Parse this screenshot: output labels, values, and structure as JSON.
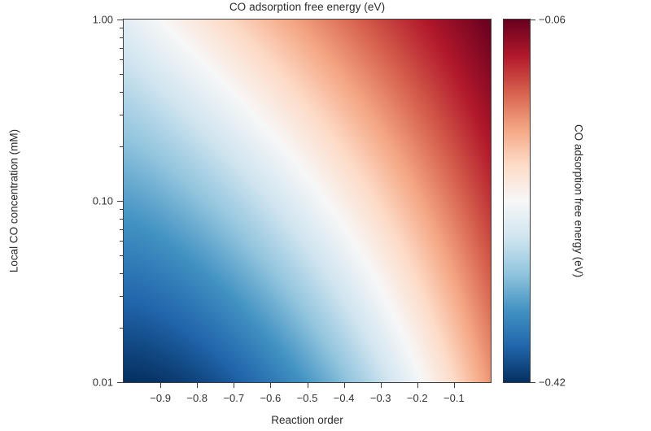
{
  "chart_data": {
    "type": "heatmap",
    "title": "CO adsorption free energy (eV)",
    "xlabel": "Reaction order",
    "ylabel": "Local CO concentration (mM)",
    "x_axis": {
      "min": -1.0,
      "max": 0.0,
      "ticks": [
        {
          "value": -0.9,
          "label": "−0.9"
        },
        {
          "value": -0.8,
          "label": "−0.8"
        },
        {
          "value": -0.7,
          "label": "−0.7"
        },
        {
          "value": -0.6,
          "label": "−0.6"
        },
        {
          "value": -0.5,
          "label": "−0.5"
        },
        {
          "value": -0.4,
          "label": "−0.4"
        },
        {
          "value": -0.3,
          "label": "−0.3"
        },
        {
          "value": -0.2,
          "label": "−0.2"
        },
        {
          "value": -0.1,
          "label": "−0.1"
        }
      ]
    },
    "y_axis": {
      "scale": "log",
      "min": 0.01,
      "max": 1.0,
      "ticks": [
        {
          "value": 1.0,
          "label": "1.00"
        },
        {
          "value": 0.1,
          "label": "0.10"
        },
        {
          "value": 0.01,
          "label": "0.01"
        }
      ],
      "minor_ticks": [
        0.9,
        0.8,
        0.7,
        0.6,
        0.5,
        0.4,
        0.3,
        0.2,
        0.09,
        0.08,
        0.07,
        0.06,
        0.05,
        0.04,
        0.03,
        0.02
      ]
    },
    "colorbar": {
      "label": "CO adsorption free energy (eV)",
      "min": -0.42,
      "max": -0.06,
      "ticks": [
        {
          "value": -0.06,
          "label": "−0.06",
          "at": "top"
        },
        {
          "value": -0.42,
          "label": "−0.42",
          "at": "bottom"
        }
      ]
    },
    "colormap": {
      "name": "RdBu_r",
      "stops": [
        {
          "pos": 0.0,
          "color": "#053061"
        },
        {
          "pos": 0.1,
          "color": "#2166AC"
        },
        {
          "pos": 0.2,
          "color": "#4393C3"
        },
        {
          "pos": 0.3,
          "color": "#92C5DE"
        },
        {
          "pos": 0.4,
          "color": "#D1E5F0"
        },
        {
          "pos": 0.5,
          "color": "#F7F7F7"
        },
        {
          "pos": 0.6,
          "color": "#FDDBC7"
        },
        {
          "pos": 0.7,
          "color": "#F4A582"
        },
        {
          "pos": 0.8,
          "color": "#D6604D"
        },
        {
          "pos": 0.9,
          "color": "#B2182B"
        },
        {
          "pos": 1.0,
          "color": "#67001F"
        }
      ]
    },
    "field": {
      "description": "CO adsorption free energy (eV) over reaction order (x, linear) and local CO concentration (y, log). Red = less negative (weaker adsorption), blue = more negative (stronger adsorption). White diagonal band runs from top-left toward bottom-right.",
      "white_contour_eV": -0.24,
      "corner_values_eV": {
        "top_left": -0.26,
        "top_right": -0.06,
        "bottom_left": -0.42,
        "bottom_right": -0.16
      },
      "row_warp_exponent_bottom": 1.8
    }
  }
}
